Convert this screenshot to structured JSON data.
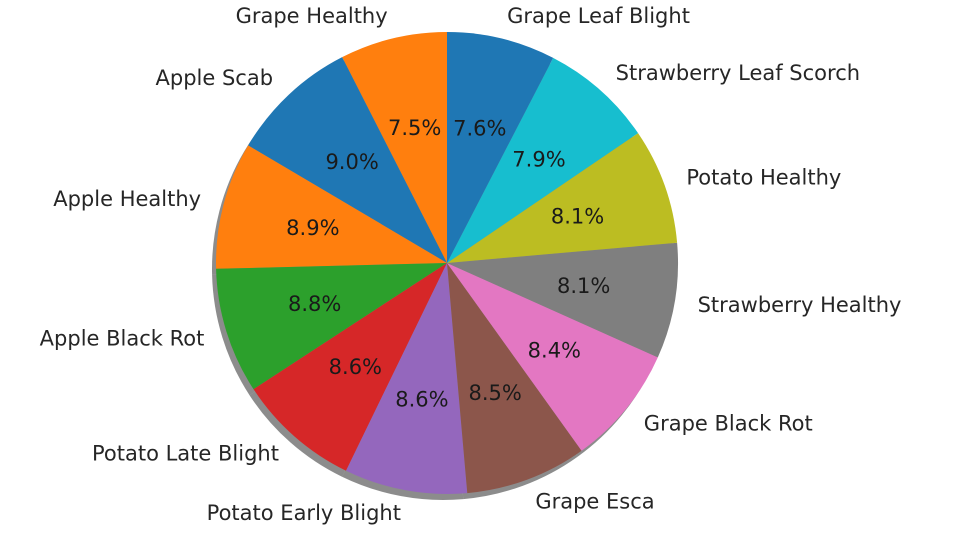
{
  "chart_data": {
    "type": "pie",
    "title": "",
    "start_angle_deg": 90,
    "direction": "counterclockwise",
    "shadow": true,
    "slices": [
      {
        "label": "Grape Healthy",
        "percent": 7.5,
        "pct_text": "7.5%",
        "color": "#ff7f0e"
      },
      {
        "label": "Apple Scab",
        "percent": 9.0,
        "pct_text": "9.0%",
        "color": "#1f77b4"
      },
      {
        "label": "Apple Healthy",
        "percent": 8.9,
        "pct_text": "8.9%",
        "color": "#ff7f0e"
      },
      {
        "label": "Apple Black Rot",
        "percent": 8.8,
        "pct_text": "8.8%",
        "color": "#2ca02c"
      },
      {
        "label": "Potato Late Blight",
        "percent": 8.6,
        "pct_text": "8.6%",
        "color": "#d62728"
      },
      {
        "label": "Potato Early Blight",
        "percent": 8.6,
        "pct_text": "8.6%",
        "color": "#9467bd"
      },
      {
        "label": "Grape Esca",
        "percent": 8.5,
        "pct_text": "8.5%",
        "color": "#8c564b"
      },
      {
        "label": "Grape Black Rot",
        "percent": 8.4,
        "pct_text": "8.4%",
        "color": "#e377c2"
      },
      {
        "label": "Strawberry Healthy",
        "percent": 8.1,
        "pct_text": "8.1%",
        "color": "#7f7f7f"
      },
      {
        "label": "Potato Healthy",
        "percent": 8.1,
        "pct_text": "8.1%",
        "color": "#bcbd22"
      },
      {
        "label": "Strawberry Leaf Scorch",
        "percent": 7.9,
        "pct_text": "7.9%",
        "color": "#17becf"
      },
      {
        "label": "Grape Leaf Blight",
        "percent": 7.6,
        "pct_text": "7.6%",
        "color": "#1f77b4"
      }
    ]
  }
}
